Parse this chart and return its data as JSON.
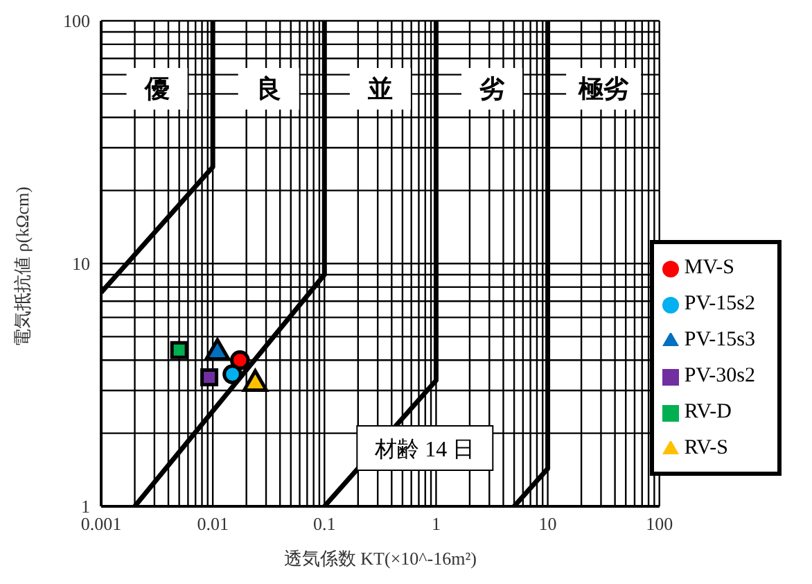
{
  "chart_data": {
    "type": "scatter",
    "xlabel": "透気係数 KT(×10^-16m²)",
    "ylabel": "電気抵抗値 ρ(kΩcm)",
    "log": "xy",
    "grid": true,
    "legend": "right",
    "xlim": [
      0.001,
      100
    ],
    "ylim": [
      1,
      100
    ],
    "xticks": [
      {
        "value": 0.001,
        "label": "0.001"
      },
      {
        "value": 0.002,
        "label": null
      },
      {
        "value": 0.003,
        "label": null
      },
      {
        "value": 0.004,
        "label": null
      },
      {
        "value": 0.005,
        "label": null
      },
      {
        "value": 0.006,
        "label": null
      },
      {
        "value": 0.007,
        "label": null
      },
      {
        "value": 0.008,
        "label": null
      },
      {
        "value": 0.009,
        "label": null
      },
      {
        "value": 0.01,
        "label": "0.01"
      },
      {
        "value": 0.02,
        "label": null
      },
      {
        "value": 0.03,
        "label": null
      },
      {
        "value": 0.04,
        "label": null
      },
      {
        "value": 0.05,
        "label": null
      },
      {
        "value": 0.06,
        "label": null
      },
      {
        "value": 0.07,
        "label": null
      },
      {
        "value": 0.08,
        "label": null
      },
      {
        "value": 0.09,
        "label": null
      },
      {
        "value": 0.1,
        "label": "0.1"
      },
      {
        "value": 0.2,
        "label": null
      },
      {
        "value": 0.3,
        "label": null
      },
      {
        "value": 0.4,
        "label": null
      },
      {
        "value": 0.5,
        "label": null
      },
      {
        "value": 0.6,
        "label": null
      },
      {
        "value": 0.7,
        "label": null
      },
      {
        "value": 0.8,
        "label": null
      },
      {
        "value": 0.9,
        "label": null
      },
      1,
      {
        "value": 2,
        "label": null
      },
      {
        "value": 3,
        "label": null
      },
      {
        "value": 4,
        "label": null
      },
      {
        "value": 5,
        "label": null
      },
      {
        "value": 6,
        "label": null
      },
      {
        "value": 7,
        "label": null
      },
      {
        "value": 8,
        "label": null
      },
      {
        "value": 9,
        "label": null
      },
      10,
      {
        "value": 20,
        "label": null
      },
      {
        "value": 30,
        "label": null
      },
      {
        "value": 40,
        "label": null
      },
      {
        "value": 50,
        "label": null
      },
      {
        "value": 60,
        "label": null
      },
      {
        "value": 70,
        "label": null
      },
      {
        "value": 80,
        "label": null
      },
      {
        "value": 90,
        "label": null
      },
      100
    ],
    "yticks": [
      1,
      {
        "value": 2,
        "label": null
      },
      {
        "value": 3,
        "label": null
      },
      {
        "value": 4,
        "label": null
      },
      {
        "value": 5,
        "label": null
      },
      {
        "value": 6,
        "label": null
      },
      {
        "value": 7,
        "label": null
      },
      {
        "value": 8,
        "label": null
      },
      {
        "value": 9,
        "label": null
      },
      10,
      {
        "value": 20,
        "label": null
      },
      {
        "value": 30,
        "label": null
      },
      {
        "value": 40,
        "label": null
      },
      {
        "value": 50,
        "label": null
      },
      {
        "value": 60,
        "label": null
      },
      {
        "value": 70,
        "label": null
      },
      {
        "value": 80,
        "label": null
      },
      {
        "value": 90,
        "label": null
      },
      100
    ],
    "annotations": [
      "優",
      "良",
      "並",
      "劣",
      "極劣",
      "材齢 14 日"
    ],
    "series": [
      {
        "type": "line",
        "color": "#000000",
        "marker": "none",
        "x": [
          0.001,
          0.01,
          0.01
        ],
        "values": [
          7.6,
          25,
          100
        ]
      },
      {
        "type": "line",
        "color": "#000000",
        "marker": "none",
        "x": [
          0.002,
          0.1,
          0.1
        ],
        "values": [
          1,
          9,
          100
        ]
      },
      {
        "type": "line",
        "color": "#000000",
        "marker": "none",
        "x": [
          0.1,
          1,
          1
        ],
        "values": [
          1,
          3.3,
          100
        ]
      },
      {
        "type": "line",
        "color": "#000000",
        "marker": "none",
        "x": [
          5,
          10,
          10
        ],
        "values": [
          1,
          1.43,
          100
        ]
      },
      {
        "name": "MV-S",
        "color": "#ff0000",
        "marker": "circle",
        "x": [
          0.0175
        ],
        "values": [
          4.0
        ]
      },
      {
        "name": "RV-S",
        "color": "#ffc000",
        "marker": "triangle",
        "x": [
          0.024
        ],
        "values": [
          3.2
        ]
      },
      {
        "name": "RV-D",
        "color": "#00b050",
        "marker": "square",
        "x": [
          0.005
        ],
        "values": [
          4.4
        ]
      },
      {
        "name": "PV-15s2",
        "color": "#00b0f0",
        "marker": "circle",
        "x": [
          0.015
        ],
        "values": [
          3.5
        ]
      },
      {
        "name": "PV-15s3",
        "color": "#0070c0",
        "marker": "triangle",
        "x": [
          0.011
        ],
        "values": [
          4.3
        ]
      },
      {
        "name": "PV-30s2",
        "color": "#7030a0",
        "marker": "square",
        "x": [
          0.0093
        ],
        "values": [
          3.4
        ]
      }
    ]
  }
}
